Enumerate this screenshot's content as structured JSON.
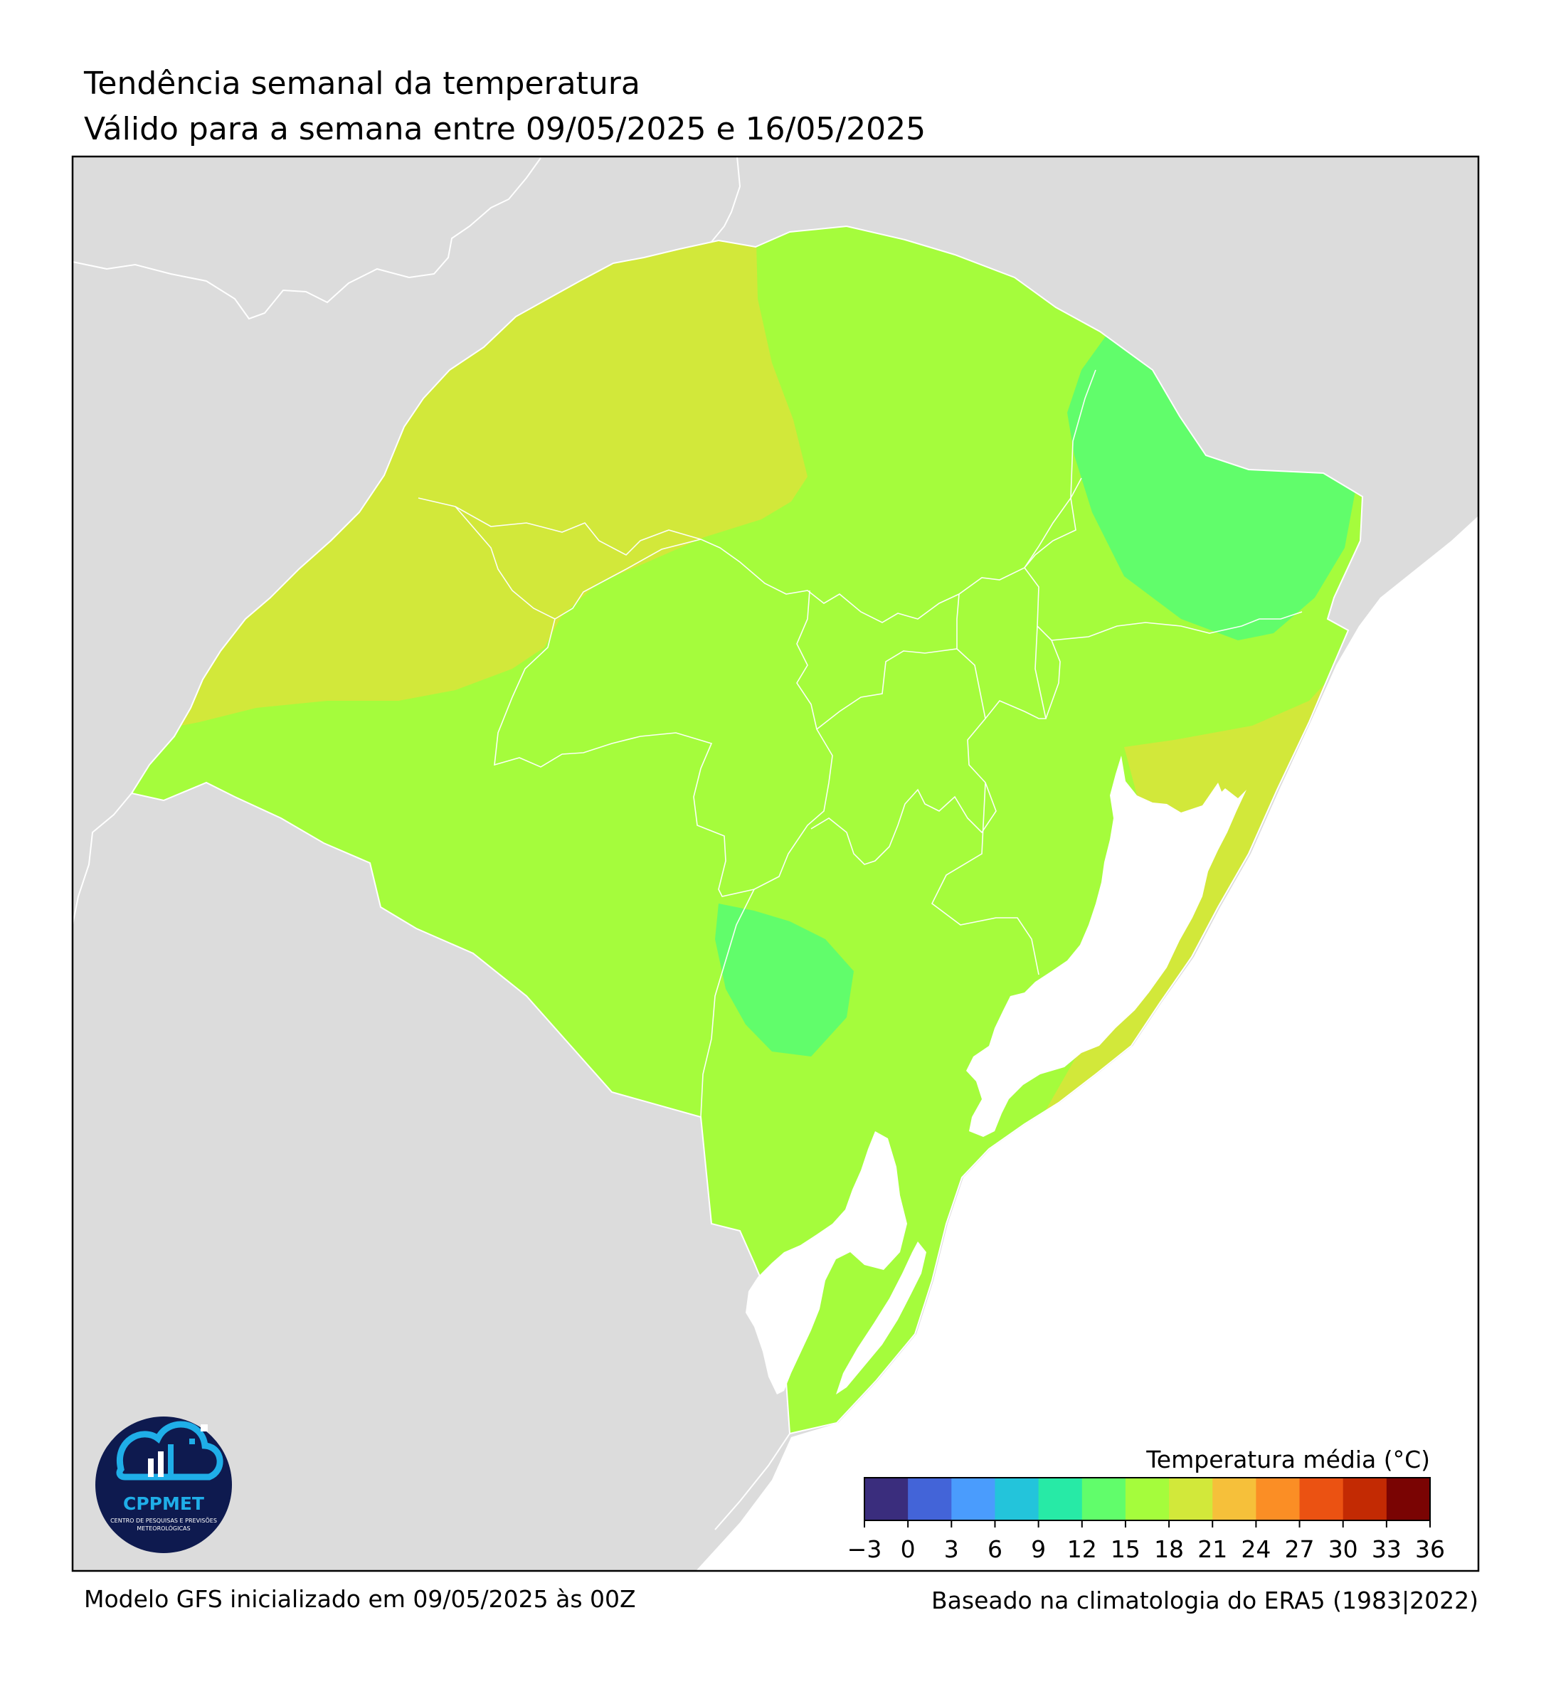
{
  "header": {
    "title": "Tendência semanal da temperatura",
    "subtitle": "Válido para a semana entre 09/05/2025 e 16/05/2025"
  },
  "footer": {
    "model_info": "Modelo GFS inicializado em 09/05/2025 às 00Z",
    "climatology_info": "Baseado na climatologia do ERA5 (1983|2022)"
  },
  "legend": {
    "title": "Temperatura média (°C)",
    "ticks": [
      "−3",
      "0",
      "3",
      "6",
      "9",
      "12",
      "15",
      "18",
      "21",
      "24",
      "27",
      "30",
      "33",
      "36"
    ],
    "colors": [
      "#3a2d7d",
      "#4364d8",
      "#4a9cfd",
      "#23c4db",
      "#27eaa6",
      "#61fd6b",
      "#a5fc3c",
      "#d2e83a",
      "#f6c03a",
      "#fb8e25",
      "#eb5212",
      "#c32a03",
      "#7a0403"
    ]
  },
  "map_colors": {
    "land_outside": "#dcdcdc",
    "ocean": "#ffffff",
    "class_12_15": "#61fd6b",
    "class_15_18": "#a5fc3c",
    "class_18_21": "#d2e83a",
    "boundaries": "#ffffff"
  },
  "logo": {
    "name": "CPPMET",
    "tagline_1": "CENTRO DE PESQUISAS E PREVISÕES",
    "tagline_2": "METEOROLÓGICAS"
  }
}
